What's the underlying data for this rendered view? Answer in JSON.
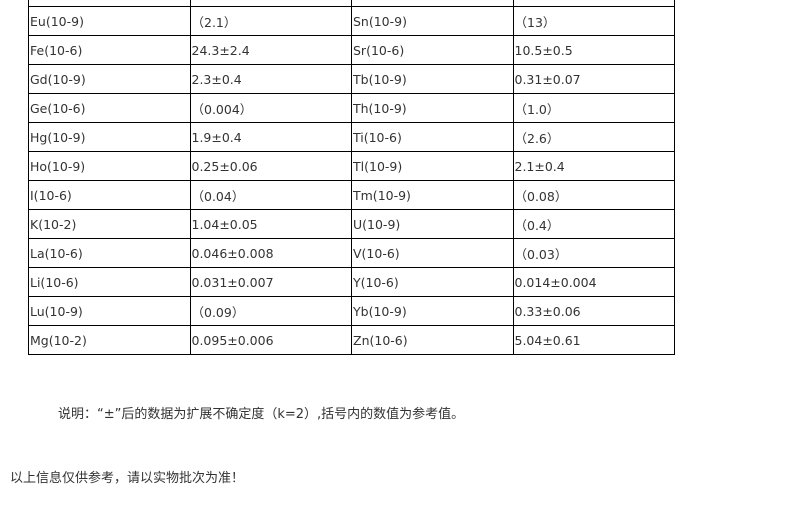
{
  "table": {
    "rows": [
      [
        "Eu(10-9)",
        "（2.1）",
        "Sn(10-9)",
        "（13）"
      ],
      [
        "Fe(10-6)",
        "24.3±2.4",
        "Sr(10-6)",
        "10.5±0.5"
      ],
      [
        "Gd(10-9)",
        "2.3±0.4",
        "Tb(10-9)",
        "0.31±0.07"
      ],
      [
        "Ge(10-6)",
        "（0.004）",
        "Th(10-9)",
        "（1.0）"
      ],
      [
        "Hg(10-9)",
        "1.9±0.4",
        "Ti(10-6)",
        "（2.6）"
      ],
      [
        "Ho(10-9)",
        "0.25±0.06",
        "Tl(10-9)",
        "2.1±0.4"
      ],
      [
        "I(10-6)",
        "（0.04）",
        "Tm(10-9)",
        "（0.08）"
      ],
      [
        "K(10-2)",
        "1.04±0.05",
        "U(10-9)",
        "（0.4）"
      ],
      [
        "La(10-6)",
        "0.046±0.008",
        "V(10-6)",
        "（0.03）"
      ],
      [
        "Li(10-6)",
        "0.031±0.007",
        "Y(10-6)",
        "0.014±0.004"
      ],
      [
        "Lu(10-9)",
        "（0.09）",
        "Yb(10-9)",
        "0.33±0.06"
      ],
      [
        "Mg(10-2)",
        "0.095±0.006",
        "Zn(10-6)",
        "5.04±0.61"
      ]
    ]
  },
  "note": "说明：“±”后的数据为扩展不确定度（k=2）,括号内的数值为参考值。",
  "footer": "以上信息仅供参考，请以实物批次为准！"
}
